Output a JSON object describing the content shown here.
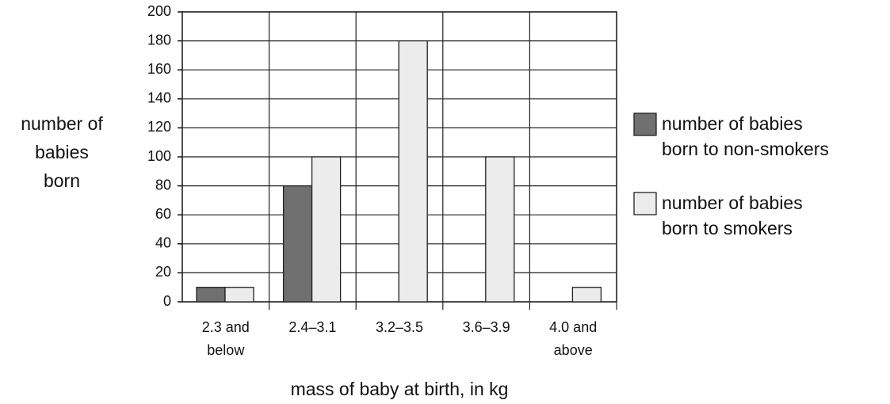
{
  "chart_data": {
    "type": "bar",
    "categories": [
      "2.3 and\nbelow",
      "2.4–3.1",
      "3.2–3.5",
      "3.6–3.9",
      "4.0 and\nabove"
    ],
    "series": [
      {
        "name": "number of babies\nborn to non-smokers",
        "color": "#707070",
        "values": [
          10,
          80,
          null,
          null,
          null
        ]
      },
      {
        "name": "number of babies\nborn to smokers",
        "color": "#ececec",
        "values": [
          10,
          100,
          180,
          100,
          10
        ]
      }
    ],
    "ylim": [
      0,
      200
    ],
    "yticks": [
      0,
      20,
      40,
      60,
      80,
      100,
      120,
      140,
      160,
      180,
      200
    ],
    "xlabel": "mass of baby at birth, in kg",
    "ylabel": "number of\nbabies\nborn",
    "grid": true,
    "legend": "right"
  }
}
